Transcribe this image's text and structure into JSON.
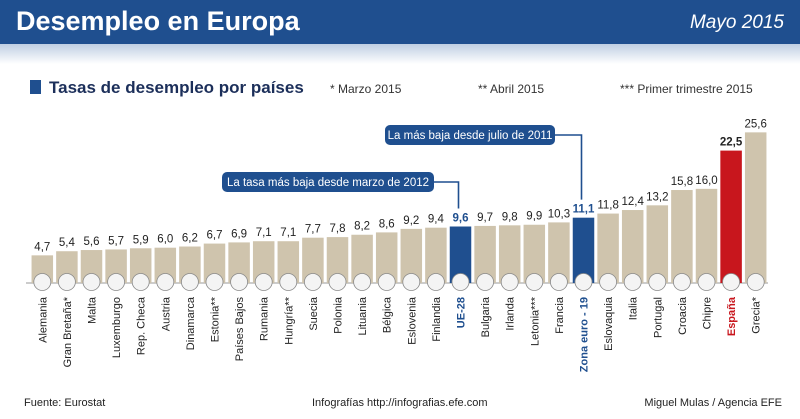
{
  "header": {
    "title": "Desempleo en Europa",
    "date": "Mayo 2015"
  },
  "subtitle": "Tasas de desempleo por países",
  "notes": {
    "march": "* Marzo 2015",
    "april": "** Abril 2015",
    "q1": "*** Primer trimestre 2015"
  },
  "footer": {
    "source": "Fuente: Eurostat",
    "web": "Infografías http://infografias.efe.com",
    "credit": "Miguel Mulas / Agencia EFE"
  },
  "colors": {
    "header": "#1f4f8f",
    "bar": "#cfc4ad",
    "highlight_blue": "#1f4f8f",
    "highlight_red": "#c8161d",
    "callout": "#1f4f8f"
  },
  "chart_data": {
    "type": "bar",
    "title": "Tasas de desempleo por países",
    "categories": [
      "Alemania",
      "Gran Bretaña*",
      "Malta",
      "Luxemburgo",
      "Rep. Checa",
      "Austria",
      "Dinamarca",
      "Estonia**",
      "Países Bajos",
      "Rumania",
      "Hungría**",
      "Suecia",
      "Polonia",
      "Lituania",
      "Bélgica",
      "Eslovenia",
      "Finlandia",
      "UE-28",
      "Bulgaria",
      "Irlanda",
      "Letonia***",
      "Francia",
      "Zona euro - 19",
      "Eslovaquia",
      "Italia",
      "Portugal",
      "Croacia",
      "Chipre",
      "España",
      "Grecia*"
    ],
    "values": [
      4.7,
      5.4,
      5.6,
      5.7,
      5.9,
      6.0,
      6.2,
      6.7,
      6.9,
      7.1,
      7.1,
      7.7,
      7.8,
      8.2,
      8.6,
      9.2,
      9.4,
      9.6,
      9.7,
      9.8,
      9.9,
      10.3,
      11.1,
      11.8,
      12.4,
      13.2,
      15.8,
      16.0,
      22.5,
      25.6
    ],
    "value_labels": [
      "4,7",
      "5,4",
      "5,6",
      "5,7",
      "5,9",
      "6,0",
      "6,2",
      "6,7",
      "6,9",
      "7,1",
      "7,1",
      "7,7",
      "7,8",
      "8,2",
      "8,6",
      "9,2",
      "9,4",
      "9,6",
      "9,7",
      "9,8",
      "9,9",
      "10,3",
      "11,1",
      "11,8",
      "12,4",
      "13,2",
      "15,8",
      "16,0",
      "22,5",
      "25,6"
    ],
    "highlight": {
      "UE-28": "blue",
      "Zona euro - 19": "blue",
      "España": "red"
    },
    "ylim": [
      0,
      26
    ],
    "grid": false,
    "annotations": [
      {
        "target": "UE-28",
        "text": "La tasa más baja desde marzo de 2012"
      },
      {
        "target": "Zona euro - 19",
        "text": "La más baja desde julio de 2011"
      }
    ]
  }
}
